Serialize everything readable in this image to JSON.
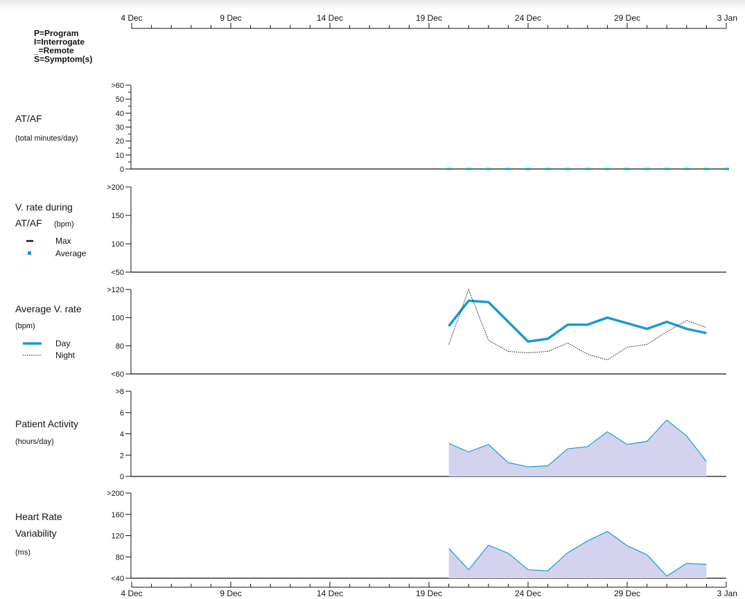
{
  "legend_codes": [
    "P=Program",
    "I=Interrogate",
    "_=Remote",
    "S=Symptom(s)"
  ],
  "colors": {
    "day_line": "#1a9ad0",
    "night_line": "#111111",
    "area_fill": "#d3d3ef",
    "area_stroke": "#1a9ad0",
    "af_marker": "#1a9ad0"
  },
  "chart_data": {
    "type": "line",
    "x_axis": {
      "range": [
        "4 Dec",
        "3 Jan"
      ],
      "tick_labels": [
        "4 Dec",
        "9 Dec",
        "14 Dec",
        "19 Dec",
        "24 Dec",
        "29 Dec",
        "3 Jan"
      ],
      "tick_days": [
        0,
        5,
        10,
        15,
        20,
        25,
        30
      ],
      "minor_tick_every_days": 1
    },
    "panels": [
      {
        "id": "at-af",
        "title_lines": [
          "AT/AF"
        ],
        "subtitle_lines": [
          "(total minutes/day)"
        ],
        "ylim": [
          0,
          60
        ],
        "y_ticks": [
          0,
          10,
          20,
          30,
          40,
          50,
          60
        ],
        "y_tick_labels": [
          "0",
          "10",
          "20",
          "30",
          "40",
          "50",
          ">60"
        ],
        "series": [
          {
            "kind": "markers",
            "x_days": [
              16,
              17,
              18,
              19,
              20,
              21,
              22,
              23,
              24,
              25,
              26,
              27,
              28,
              29,
              30
            ],
            "values": [
              0,
              0,
              0,
              0,
              0,
              0,
              0,
              0,
              0,
              0,
              0,
              0,
              0,
              0,
              0
            ]
          }
        ]
      },
      {
        "id": "v-rate-af",
        "title_lines": [
          "V. rate during",
          "AT/AF"
        ],
        "title_suffix": "(bpm)",
        "ylim": [
          50,
          200
        ],
        "y_ticks": [
          50,
          100,
          150,
          200
        ],
        "y_tick_labels": [
          "<50",
          "100",
          "150",
          ">200"
        ],
        "legend": [
          {
            "name": "Max",
            "style": "dash"
          },
          {
            "name": "Average",
            "style": "square"
          }
        ],
        "series": []
      },
      {
        "id": "avg-v-rate",
        "title_lines": [
          "Average V. rate"
        ],
        "subtitle_lines": [
          "(bpm)"
        ],
        "ylim": [
          60,
          120
        ],
        "y_ticks": [
          60,
          80,
          100,
          120
        ],
        "y_tick_labels": [
          "<60",
          "80",
          "100",
          ">120"
        ],
        "legend": [
          {
            "name": "Day",
            "style": "thick"
          },
          {
            "name": "Night",
            "style": "dotted"
          }
        ],
        "series": [
          {
            "name": "Day",
            "kind": "line-thick",
            "x_days": [
              16,
              17,
              18,
              19,
              20,
              21,
              22,
              23,
              24,
              25,
              26,
              27,
              28,
              29
            ],
            "values": [
              94,
              112,
              111,
              97,
              83,
              85,
              95,
              95,
              100,
              96,
              92,
              97,
              92,
              89
            ]
          },
          {
            "name": "Night",
            "kind": "line-dotted",
            "x_days": [
              16,
              17,
              18,
              19,
              20,
              21,
              22,
              23,
              24,
              25,
              26,
              27,
              28,
              29
            ],
            "values": [
              81,
              120,
              84,
              76,
              75,
              76,
              82,
              74,
              70,
              79,
              81,
              90,
              98,
              93
            ]
          }
        ]
      },
      {
        "id": "patient-activity",
        "title_lines": [
          "Patient Activity"
        ],
        "subtitle_lines": [
          "(hours/day)"
        ],
        "ylim": [
          0,
          8
        ],
        "y_ticks": [
          0,
          2,
          4,
          6,
          8
        ],
        "y_tick_labels": [
          "0",
          "2",
          "4",
          "6",
          ">8"
        ],
        "series": [
          {
            "kind": "area",
            "x_days": [
              16,
              17,
              18,
              19,
              20,
              21,
              22,
              23,
              24,
              25,
              26,
              27,
              28,
              29
            ],
            "values": [
              3.1,
              2.3,
              3.0,
              1.3,
              0.9,
              1.0,
              2.6,
              2.8,
              4.2,
              3.0,
              3.3,
              5.3,
              3.8,
              1.4
            ]
          }
        ]
      },
      {
        "id": "hrv",
        "title_lines": [
          "Heart Rate",
          "Variability"
        ],
        "subtitle_lines": [
          "(ms)"
        ],
        "ylim": [
          40,
          200
        ],
        "y_ticks": [
          40,
          80,
          120,
          160,
          200
        ],
        "y_tick_labels": [
          "<40",
          "80",
          "120",
          "160",
          ">200"
        ],
        "series": [
          {
            "kind": "area",
            "x_days": [
              16,
              17,
              18,
              19,
              20,
              21,
              22,
              23,
              24,
              25,
              26,
              27,
              28,
              29
            ],
            "values": [
              96,
              56,
              102,
              87,
              56,
              54,
              88,
              110,
              128,
              101,
              84,
              44,
              68,
              66
            ]
          }
        ]
      }
    ]
  }
}
